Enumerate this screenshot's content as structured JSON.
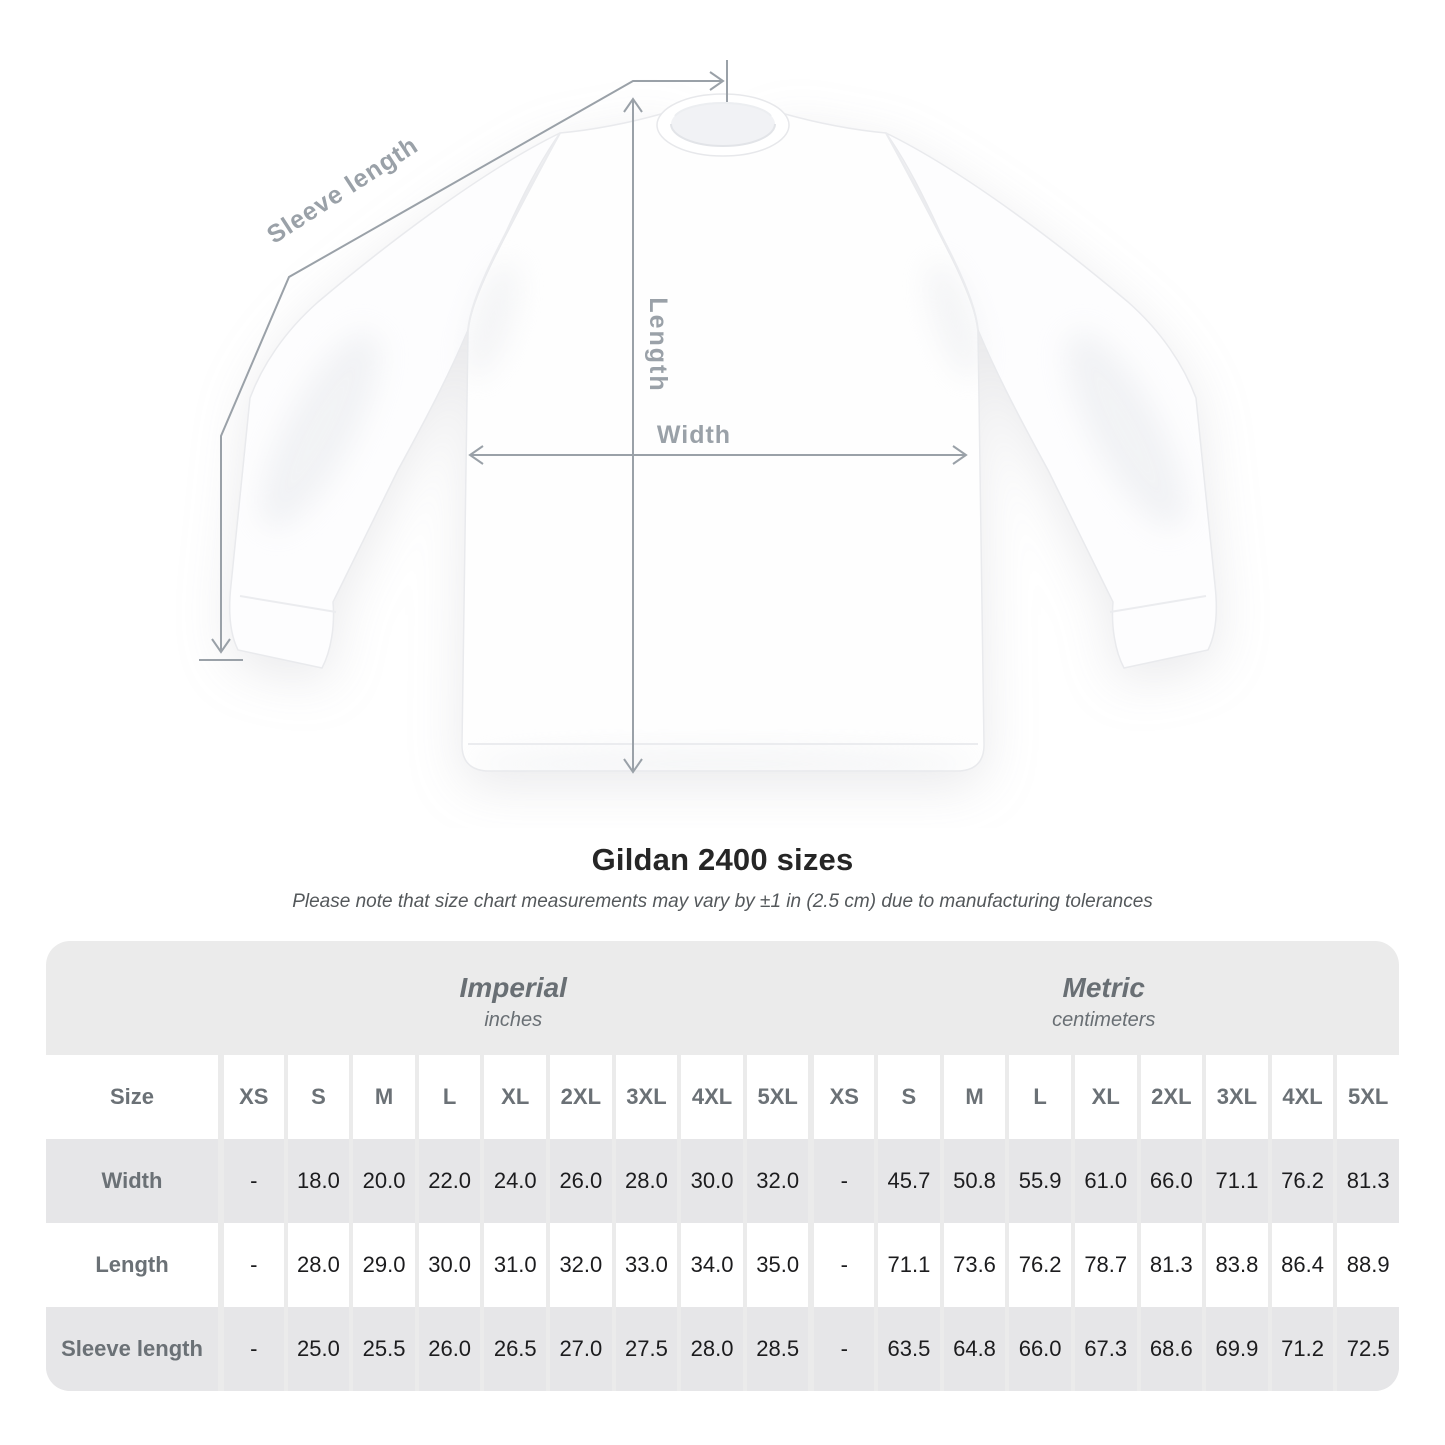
{
  "title": "Gildan 2400 sizes",
  "subtitle": "Please note that size chart measurements may vary by ±1 in (2.5 cm) due to manufacturing tolerances",
  "diagram": {
    "sleeve_length_label": "Sleeve length",
    "length_label": "Length",
    "width_label": "Width"
  },
  "table": {
    "size_header": "Size",
    "sections": [
      {
        "label": "Imperial",
        "unit": "inches"
      },
      {
        "label": "Metric",
        "unit": "centimeters"
      }
    ],
    "sizes": [
      "XS",
      "S",
      "M",
      "L",
      "XL",
      "2XL",
      "3XL",
      "4XL",
      "5XL"
    ],
    "rows": [
      {
        "label": "Width",
        "imperial": [
          "-",
          "18.0",
          "20.0",
          "22.0",
          "24.0",
          "26.0",
          "28.0",
          "30.0",
          "32.0"
        ],
        "metric": [
          "-",
          "45.7",
          "50.8",
          "55.9",
          "61.0",
          "66.0",
          "71.1",
          "76.2",
          "81.3"
        ]
      },
      {
        "label": "Length",
        "imperial": [
          "-",
          "28.0",
          "29.0",
          "30.0",
          "31.0",
          "32.0",
          "33.0",
          "34.0",
          "35.0"
        ],
        "metric": [
          "-",
          "71.1",
          "73.6",
          "76.2",
          "78.7",
          "81.3",
          "83.8",
          "86.4",
          "88.9"
        ]
      },
      {
        "label": "Sleeve length",
        "imperial": [
          "-",
          "25.0",
          "25.5",
          "26.0",
          "26.5",
          "27.0",
          "27.5",
          "28.0",
          "28.5"
        ],
        "metric": [
          "-",
          "63.5",
          "64.8",
          "66.0",
          "67.3",
          "68.6",
          "69.9",
          "71.2",
          "72.5"
        ]
      }
    ]
  },
  "colors": {
    "measurement_line": "#9aa1a8",
    "card_background": "#ebebeb",
    "row_shaded": "#e6e6e8",
    "header_text": "#6b7176",
    "title_text": "#262626",
    "subtitle_text": "#54585b",
    "value_text": "#1c1c1e"
  }
}
